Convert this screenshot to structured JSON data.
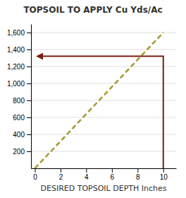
{
  "chart_data": {
    "type": "line",
    "title": "TOPSOIL TO APPLY Cu Yds/Ac",
    "x_label": "DESIRED TOPSOIL DEPTH Inches",
    "xlim": [
      -0.3,
      11
    ],
    "xticks": [
      0,
      2,
      4,
      6,
      8,
      10
    ],
    "ylim": [
      0,
      1700
    ],
    "yticks": [
      200,
      400,
      600,
      800,
      {
        "value": 1000,
        "label": "1,000"
      },
      {
        "value": 1200,
        "label": "1,200"
      },
      {
        "value": 1400,
        "label": "1,400"
      },
      {
        "value": 1600,
        "label": "1,600"
      }
    ],
    "grid": true,
    "series": [
      {
        "color": "#a89830",
        "line_style": "dashed",
        "x": [
          0,
          10
        ],
        "values": [
          0,
          1600
        ]
      },
      {
        "color": "#7a1e10",
        "line_style": "solid",
        "marker": "arrow",
        "x": [
          10,
          10,
          0.2
        ],
        "values": [
          0,
          1320,
          1320
        ]
      }
    ]
  }
}
